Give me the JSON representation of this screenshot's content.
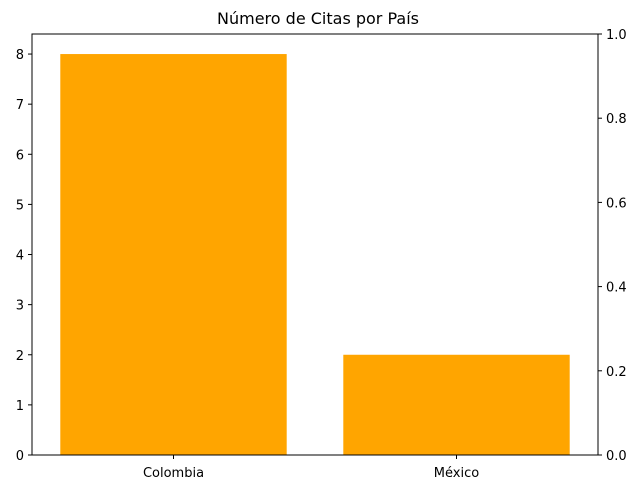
{
  "chart_data": {
    "type": "bar",
    "title": "Número de Citas por País",
    "xlabel": "",
    "ylabel": "",
    "categories": [
      "Colombia",
      "México"
    ],
    "values": [
      8,
      2
    ],
    "bar_color": "#FFA500",
    "ylim": [
      0,
      8.4
    ],
    "yticks": [
      0,
      1,
      2,
      3,
      4,
      5,
      6,
      7,
      8
    ],
    "y2lim": [
      0,
      1
    ],
    "y2ticks": [
      "0.0",
      "0.2",
      "0.4",
      "0.6",
      "0.8",
      "1.0"
    ],
    "grid": false,
    "legend": "none"
  }
}
